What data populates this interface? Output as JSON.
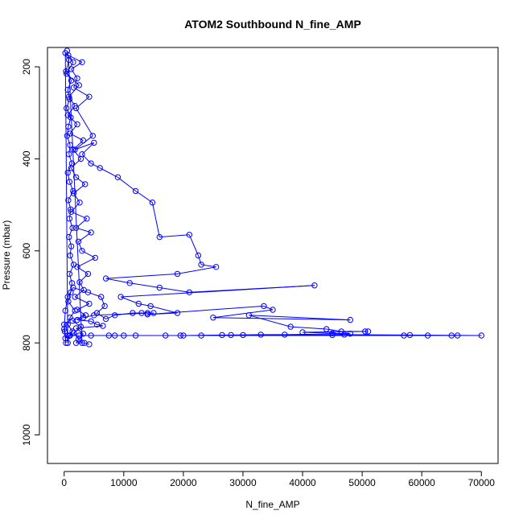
{
  "chart_data": {
    "type": "line",
    "title": "ATOM2 Southbound N_fine_AMP",
    "xlabel": "N_fine_AMP",
    "ylabel": "Pressure (mbar)",
    "xlim": [
      -2800,
      72800
    ],
    "ylim": [
      1062,
      158
    ],
    "y_reversed": true,
    "x_ticks": [
      0,
      10000,
      20000,
      30000,
      40000,
      50000,
      60000,
      70000
    ],
    "y_ticks": [
      200,
      400,
      600,
      800,
      1000
    ],
    "grid": false,
    "legend": "none",
    "series": [
      {
        "color": "#0000ff",
        "marker": "open-circle",
        "points": [
          [
            500,
            165
          ],
          [
            800,
            185
          ],
          [
            300,
            210
          ],
          [
            1200,
            230
          ],
          [
            600,
            250
          ],
          [
            900,
            270
          ],
          [
            400,
            290
          ],
          [
            1100,
            310
          ],
          [
            700,
            330
          ],
          [
            500,
            350
          ],
          [
            1000,
            370
          ],
          [
            800,
            390
          ],
          [
            1300,
            410
          ],
          [
            600,
            430
          ],
          [
            900,
            450
          ],
          [
            1500,
            470
          ],
          [
            700,
            490
          ],
          [
            1100,
            510
          ],
          [
            900,
            530
          ],
          [
            1400,
            550
          ],
          [
            800,
            570
          ],
          [
            1200,
            590
          ],
          [
            1000,
            610
          ],
          [
            1600,
            630
          ],
          [
            900,
            650
          ],
          [
            1300,
            670
          ],
          [
            1100,
            690
          ],
          [
            700,
            710
          ],
          [
            1800,
            730
          ],
          [
            1000,
            745
          ],
          [
            600,
            760
          ],
          [
            1400,
            775
          ],
          [
            800,
            785
          ],
          [
            600,
            800
          ],
          [
            200,
            170
          ],
          [
            1500,
            190
          ],
          [
            400,
            215
          ],
          [
            2500,
            240
          ],
          [
            800,
            265
          ],
          [
            1800,
            285
          ],
          [
            600,
            305
          ],
          [
            2200,
            325
          ],
          [
            1000,
            345
          ],
          [
            3200,
            360
          ],
          [
            1500,
            380
          ],
          [
            2800,
            400
          ],
          [
            1200,
            420
          ],
          [
            2000,
            440
          ],
          [
            3500,
            455
          ],
          [
            1600,
            475
          ],
          [
            2600,
            495
          ],
          [
            1200,
            515
          ],
          [
            3800,
            530
          ],
          [
            2000,
            550
          ],
          [
            4500,
            560
          ],
          [
            2400,
            580
          ],
          [
            3000,
            600
          ],
          [
            5200,
            615
          ],
          [
            2200,
            635
          ],
          [
            4000,
            650
          ],
          [
            2600,
            668
          ],
          [
            3300,
            685
          ],
          [
            1800,
            700
          ],
          [
            4200,
            715
          ],
          [
            2200,
            728
          ],
          [
            3600,
            740
          ],
          [
            1400,
            752
          ],
          [
            2800,
            765
          ],
          [
            1600,
            778
          ],
          [
            2400,
            792
          ],
          [
            3000,
            800
          ],
          [
            700,
            175
          ],
          [
            3000,
            190
          ],
          [
            1200,
            205
          ],
          [
            2200,
            225
          ],
          [
            1600,
            245
          ],
          [
            4200,
            265
          ],
          [
            2000,
            290
          ],
          [
            4800,
            350
          ],
          [
            1800,
            380
          ],
          [
            5000,
            365
          ],
          [
            3000,
            390
          ],
          [
            4500,
            410
          ],
          [
            6000,
            420
          ],
          [
            9000,
            440
          ],
          [
            12000,
            470
          ],
          [
            14800,
            495
          ],
          [
            16000,
            570
          ],
          [
            21000,
            565
          ],
          [
            22500,
            610
          ],
          [
            23000,
            630
          ],
          [
            25500,
            635
          ],
          [
            19000,
            650
          ],
          [
            7000,
            660
          ],
          [
            11000,
            670
          ],
          [
            16000,
            680
          ],
          [
            21000,
            690
          ],
          [
            42000,
            675
          ],
          [
            9500,
            700
          ],
          [
            12500,
            715
          ],
          [
            14500,
            720
          ],
          [
            19000,
            735
          ],
          [
            14000,
            738
          ],
          [
            33500,
            720
          ],
          [
            35000,
            728
          ],
          [
            25000,
            745
          ],
          [
            48000,
            750
          ],
          [
            31000,
            740
          ],
          [
            38000,
            765
          ],
          [
            44000,
            770
          ],
          [
            46500,
            775
          ],
          [
            50500,
            775
          ],
          [
            51000,
            775
          ],
          [
            40000,
            777
          ],
          [
            45000,
            779
          ],
          [
            48000,
            780
          ],
          [
            37000,
            782
          ],
          [
            33000,
            782
          ],
          [
            28000,
            783
          ],
          [
            26500,
            783
          ],
          [
            20000,
            784
          ],
          [
            19500,
            784
          ],
          [
            12000,
            784
          ],
          [
            8500,
            784
          ],
          [
            7500,
            784
          ],
          [
            57000,
            784
          ],
          [
            61000,
            784
          ],
          [
            65000,
            784
          ],
          [
            66000,
            784
          ],
          [
            70000,
            784
          ],
          [
            58000,
            783
          ],
          [
            47000,
            782
          ],
          [
            45000,
            783
          ],
          [
            30000,
            783
          ],
          [
            23000,
            784
          ],
          [
            17000,
            784
          ],
          [
            10000,
            784
          ],
          [
            4500,
            784
          ],
          [
            2500,
            784
          ],
          [
            1000,
            784
          ],
          [
            600,
            784
          ],
          [
            200,
            790
          ],
          [
            0,
            760
          ],
          [
            100,
            775
          ],
          [
            300,
            800
          ],
          [
            0,
            770
          ],
          [
            200,
            730
          ],
          [
            600,
            700
          ],
          [
            1500,
            680
          ],
          [
            4000,
            690
          ],
          [
            6200,
            700
          ],
          [
            6800,
            720
          ],
          [
            5500,
            735
          ],
          [
            7000,
            748
          ],
          [
            8500,
            740
          ],
          [
            11500,
            735
          ],
          [
            13000,
            735
          ],
          [
            14000,
            735
          ],
          [
            15000,
            735
          ],
          [
            5000,
            740
          ],
          [
            3200,
            745
          ],
          [
            2200,
            750
          ],
          [
            4500,
            753
          ],
          [
            5500,
            760
          ],
          [
            6500,
            763
          ],
          [
            2000,
            768
          ],
          [
            3200,
            780
          ],
          [
            2000,
            800
          ],
          [
            3400,
            800
          ],
          [
            4200,
            803
          ]
        ]
      }
    ]
  }
}
